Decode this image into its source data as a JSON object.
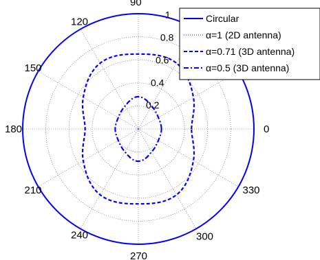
{
  "chart_data": {
    "type": "polar-line",
    "title": "",
    "rlim": [
      0,
      1
    ],
    "r_ticks": [
      "0.2",
      "0.4",
      "0.6",
      "0.8",
      "1"
    ],
    "r_tick_values": [
      0.2,
      0.4,
      0.6,
      0.8,
      1.0
    ],
    "theta_ticks_deg": [
      0,
      30,
      60,
      90,
      120,
      150,
      180,
      210,
      240,
      270,
      300,
      330
    ],
    "theta_tick_labels": [
      "0",
      "",
      "",
      "90",
      "120",
      "150",
      "180",
      "210",
      "240",
      "270",
      "300",
      "330"
    ],
    "grid": true,
    "legend_location": "top-right",
    "series": [
      {
        "name": "Circular",
        "style": "solid",
        "color": "#0000ff",
        "r_const": 1.0
      },
      {
        "name": "α=1 (2D antenna)",
        "style": "dotted",
        "color": "#7f7fff",
        "r_const": 0.0
      },
      {
        "name": "α=0.71 (3D antenna)",
        "style": "dashed",
        "color": "#0000ff",
        "theta_deg": [
          0,
          30,
          60,
          90,
          120,
          150,
          180,
          210,
          240,
          270,
          300,
          330
        ],
        "r": [
          0.46,
          0.55,
          0.66,
          0.65,
          0.66,
          0.55,
          0.46,
          0.55,
          0.66,
          0.65,
          0.66,
          0.55
        ]
      },
      {
        "name": "α=0.5 (3D antenna)",
        "style": "dashdot",
        "color": "#0000ff",
        "theta_deg": [
          0,
          30,
          60,
          90,
          120,
          150,
          180,
          210,
          240,
          270,
          300,
          330
        ],
        "r": [
          0.2,
          0.2,
          0.23,
          0.28,
          0.23,
          0.2,
          0.2,
          0.2,
          0.23,
          0.28,
          0.23,
          0.2
        ]
      }
    ]
  }
}
